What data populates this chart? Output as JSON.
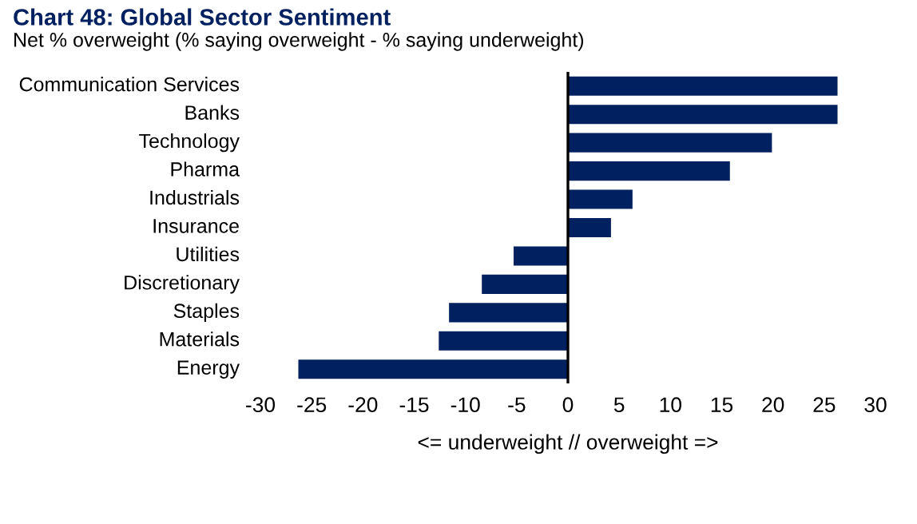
{
  "chart_data": {
    "type": "bar",
    "orientation": "horizontal",
    "title": "Chart 48: Global Sector Sentiment",
    "subtitle": "Net % overweight (% saying overweight - % saying underweight)",
    "xlabel": "<= underweight // overweight =>",
    "categories": [
      "Communication Services",
      "Banks",
      "Technology",
      "Pharma",
      "Industrials",
      "Insurance",
      "Utilities",
      "Discretionary",
      "Staples",
      "Materials",
      "Energy"
    ],
    "values": [
      26.3,
      26.3,
      19.9,
      15.8,
      6.3,
      4.2,
      -5.3,
      -8.4,
      -11.6,
      -12.6,
      -26.3
    ],
    "color": "#002060",
    "xlim": [
      -30,
      30
    ],
    "xticks": [
      -30,
      -25,
      -20,
      -15,
      -10,
      -5,
      0,
      5,
      10,
      15,
      20,
      25,
      30
    ],
    "ref_lines": [
      {
        "axis": "x",
        "value": 0,
        "color": "#000000"
      }
    ]
  }
}
